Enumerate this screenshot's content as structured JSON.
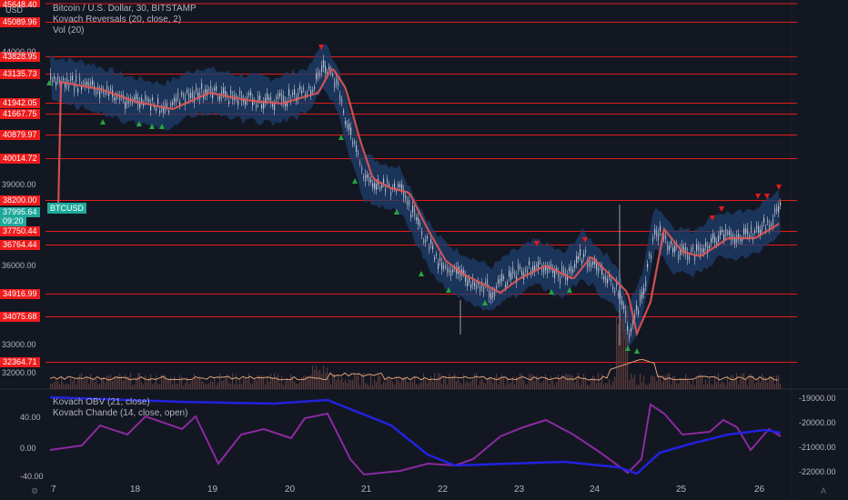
{
  "legend": {
    "title": "Bitcoin / U.S. Dollar, 30, BITSTAMP",
    "indicator1": "Kovach Reversals (20, close, 2)",
    "indicator2": "Vol (20)"
  },
  "osc_legend": {
    "obv": "Kovach OBV (21, close)",
    "chande": "Kovach Chande (14, close, open)"
  },
  "top_partial": "45648.40",
  "currency": "USD",
  "symbol_badge": "BTCUSD",
  "price_tags": [
    {
      "label": "45089.96",
      "color": "red",
      "y": 19
    },
    {
      "label": "43828.95",
      "color": "red",
      "y": 57
    },
    {
      "label": "43135.73",
      "color": "red",
      "y": 76
    },
    {
      "label": "41942.05",
      "color": "red",
      "y": 108
    },
    {
      "label": "41667.75",
      "color": "red",
      "y": 120
    },
    {
      "label": "40879.97",
      "color": "red",
      "y": 143
    },
    {
      "label": "40014.72",
      "color": "red",
      "y": 169
    },
    {
      "label": "38200.00",
      "color": "red",
      "y": 215
    },
    {
      "label": "37995.64",
      "color": "green",
      "y": 228
    },
    {
      "label": "09:20",
      "color": "green",
      "y": 238
    },
    {
      "label": "37750.44",
      "color": "red",
      "y": 249
    },
    {
      "label": "36764.44",
      "color": "red",
      "y": 264
    },
    {
      "label": "34916.99",
      "color": "red",
      "y": 318
    },
    {
      "label": "34075.68",
      "color": "red",
      "y": 343
    },
    {
      "label": "32364.71",
      "color": "red",
      "y": 393
    }
  ],
  "axis_labels": [
    {
      "label": "44000.00",
      "y": 52
    },
    {
      "label": "39000.00",
      "y": 198
    },
    {
      "label": "36000.00",
      "y": 287
    },
    {
      "label": "33000.00",
      "y": 374
    },
    {
      "label": "32000.00",
      "y": 405
    }
  ],
  "osc_left_labels": [
    {
      "label": "40.00",
      "y": 454
    },
    {
      "label": "0.00",
      "y": 488
    },
    {
      "label": "-40.00",
      "y": 519
    }
  ],
  "osc_right_labels": [
    {
      "label": "-19000.00",
      "y": 433
    },
    {
      "label": "-20000.00",
      "y": 460
    },
    {
      "label": "-21000.00",
      "y": 487
    },
    {
      "label": "-22000.00",
      "y": 514
    }
  ],
  "x_labels": [
    {
      "label": "7",
      "x": 56
    },
    {
      "label": "18",
      "x": 143
    },
    {
      "label": "19",
      "x": 228
    },
    {
      "label": "20",
      "x": 313
    },
    {
      "label": "21",
      "x": 397
    },
    {
      "label": "22",
      "x": 481
    },
    {
      "label": "23",
      "x": 565
    },
    {
      "label": "24",
      "x": 648
    },
    {
      "label": "25",
      "x": 743
    },
    {
      "label": "26",
      "x": 829
    }
  ],
  "colors": {
    "background": "#131722",
    "support_line": "#e31b1b",
    "ma_line": "#e05656",
    "band_fill": "#1d3f6e",
    "candle_up": "#b9c2d0",
    "candle_down": "#9aa3b2",
    "volume": "#5a3a3a",
    "vol_ma": "#d9a27a",
    "obv_line": "#2222dd",
    "chande_line": "#8b2aa0",
    "arrow_up": "#26a641",
    "arrow_down": "#e31b1b",
    "price_tag_green": "#1ea89a"
  },
  "icons": {
    "bottom_left": "gear-icon",
    "bottom_right": "auto-scale-icon"
  }
}
